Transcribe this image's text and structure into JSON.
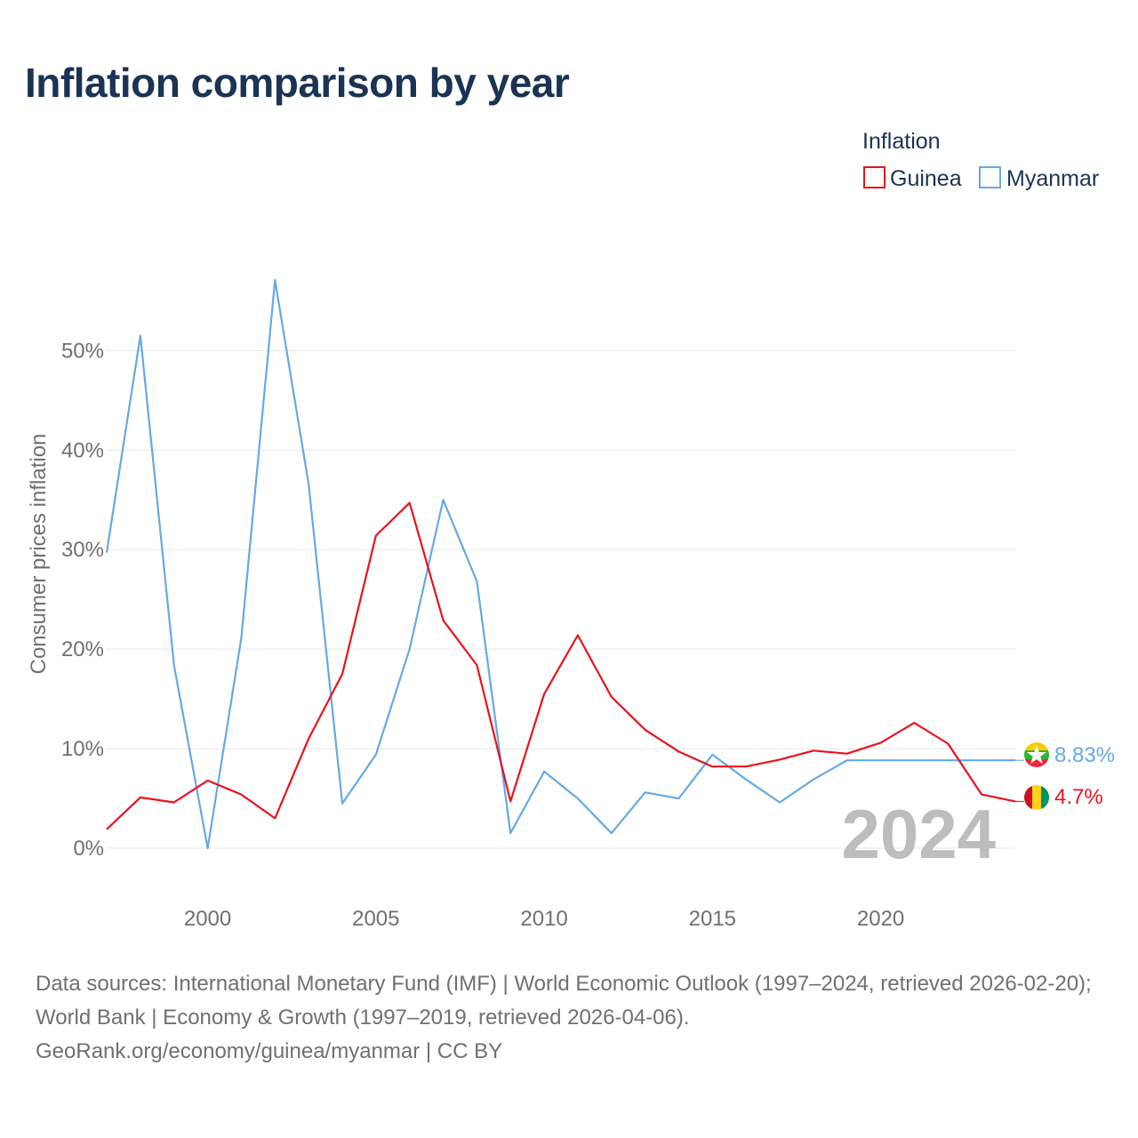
{
  "title": "Inflation comparison by year",
  "legend": {
    "title": "Inflation",
    "items": [
      {
        "label": "Guinea",
        "color": "#e8131b"
      },
      {
        "label": "Myanmar",
        "color": "#65a9e6"
      }
    ]
  },
  "year_watermark": "2024",
  "end_labels": {
    "myanmar": "8.83%",
    "guinea": "4.7%"
  },
  "sources": {
    "line1": "Data sources: International Monetary Fund (IMF) | World Economic Outlook (1997–2024, retrieved 2026-02-20); World Bank | Economy & Growth (1997–2019, retrieved 2026-04-06).",
    "line2": "GeoRank.org/economy/guinea/myanmar | CC BY"
  },
  "chart_data": {
    "type": "line",
    "ylabel": "Consumer prices inflation",
    "xlabel": "",
    "xlim": [
      1997,
      2024
    ],
    "ylim": [
      -5,
      62
    ],
    "x_ticks": [
      2000,
      2005,
      2010,
      2015,
      2020
    ],
    "y_ticks": [
      0,
      10,
      20,
      30,
      40,
      50
    ],
    "y_tick_labels": [
      "0%",
      "10%",
      "20%",
      "30%",
      "40%",
      "50%"
    ],
    "x": [
      1997,
      1998,
      1999,
      2000,
      2001,
      2002,
      2003,
      2004,
      2005,
      2006,
      2007,
      2008,
      2009,
      2010,
      2011,
      2012,
      2013,
      2014,
      2015,
      2016,
      2017,
      2018,
      2019,
      2020,
      2021,
      2022,
      2023,
      2024
    ],
    "series": [
      {
        "name": "Guinea",
        "color": "#e8131b",
        "values": [
          1.9,
          5.1,
          4.6,
          6.8,
          5.4,
          3.0,
          11.0,
          17.5,
          31.4,
          34.7,
          22.9,
          18.4,
          4.7,
          15.5,
          21.4,
          15.2,
          11.9,
          9.7,
          8.2,
          8.2,
          8.9,
          9.8,
          9.5,
          10.6,
          12.6,
          10.5,
          5.4,
          4.7
        ]
      },
      {
        "name": "Myanmar",
        "color": "#65a9e6",
        "values": [
          29.7,
          51.5,
          18.4,
          0.0,
          21.1,
          57.1,
          36.6,
          4.5,
          9.4,
          20.0,
          35.0,
          26.8,
          1.5,
          7.7,
          5.0,
          1.5,
          5.6,
          5.0,
          9.4,
          6.9,
          4.6,
          6.9,
          8.83,
          8.83,
          8.83,
          8.83,
          8.83,
          8.83
        ]
      }
    ]
  }
}
